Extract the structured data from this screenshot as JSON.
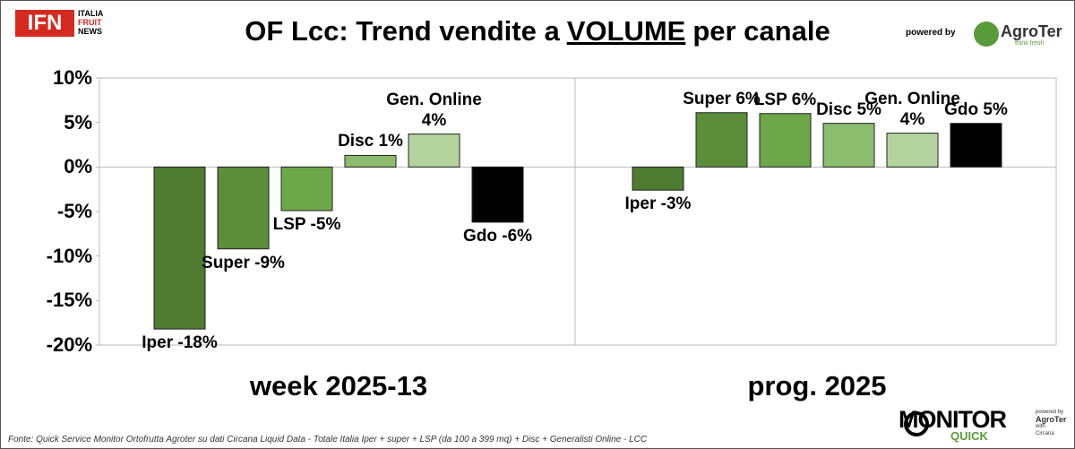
{
  "header": {
    "title": {
      "before": "OF Lcc: Trend vendite a",
      "emph": "VOLUME",
      "after": "per canale"
    },
    "logo_left": {
      "mark": "IFN",
      "line1": "ITALIA",
      "line2": "FRUIT",
      "line3": "NEWS"
    },
    "powered_by": "powered by",
    "logo_right": {
      "name": "AgroTer",
      "tagline": "think fresh"
    }
  },
  "chart_data": {
    "type": "bar",
    "categories": [
      "week 2025-13",
      "prog. 2025"
    ],
    "ylim": [
      -20,
      10
    ],
    "yticks": [
      {
        "value": -20,
        "label": "-20%"
      },
      {
        "value": -15,
        "label": "-15%"
      },
      {
        "value": -10,
        "label": "-10%"
      },
      {
        "value": -5,
        "label": "-5%"
      },
      {
        "value": 0,
        "label": "0%"
      },
      {
        "value": 5,
        "label": "5%"
      },
      {
        "value": 10,
        "label": "10%"
      }
    ],
    "grid": false,
    "series": [
      {
        "color": "#4e7b30",
        "values": [
          -18.2,
          -2.6
        ],
        "value_labels": [
          "Iper -18%",
          "Iper -3%"
        ]
      },
      {
        "color": "#5b8d3b",
        "values": [
          -9.2,
          6.1
        ],
        "value_labels": [
          "Super -9%",
          "Super 6%"
        ]
      },
      {
        "color": "#6ca74a",
        "values": [
          -4.9,
          6.0
        ],
        "value_labels": [
          "LSP -5%",
          "LSP 6%"
        ]
      },
      {
        "color": "#8cbd6e",
        "values": [
          1.3,
          4.9
        ],
        "value_labels": [
          "Disc 1%",
          "Disc 5%"
        ]
      },
      {
        "color": "#b3d39e",
        "values": [
          3.7,
          3.8
        ],
        "value_labels": [
          "Gen. Online 4%",
          "Gen. Online 4%"
        ]
      },
      {
        "color": "#000000",
        "values": [
          -6.2,
          4.9
        ],
        "value_labels": [
          "Gdo -6%",
          "Gdo 5%"
        ]
      }
    ]
  },
  "footer": {
    "source": "Fonte: Quick Service Monitor Ortofrutta Agroter su dati Circana Liquid Data - Totale Italia Iper + super + LSP (da 100 a 399 mq) + Disc + Generalisti Online - LCC",
    "brand": {
      "top": "MONITOR",
      "bottom": "QUICK",
      "powered": "powered by",
      "by": "AgroTer",
      "with": "with",
      "partner": "Circana"
    }
  }
}
